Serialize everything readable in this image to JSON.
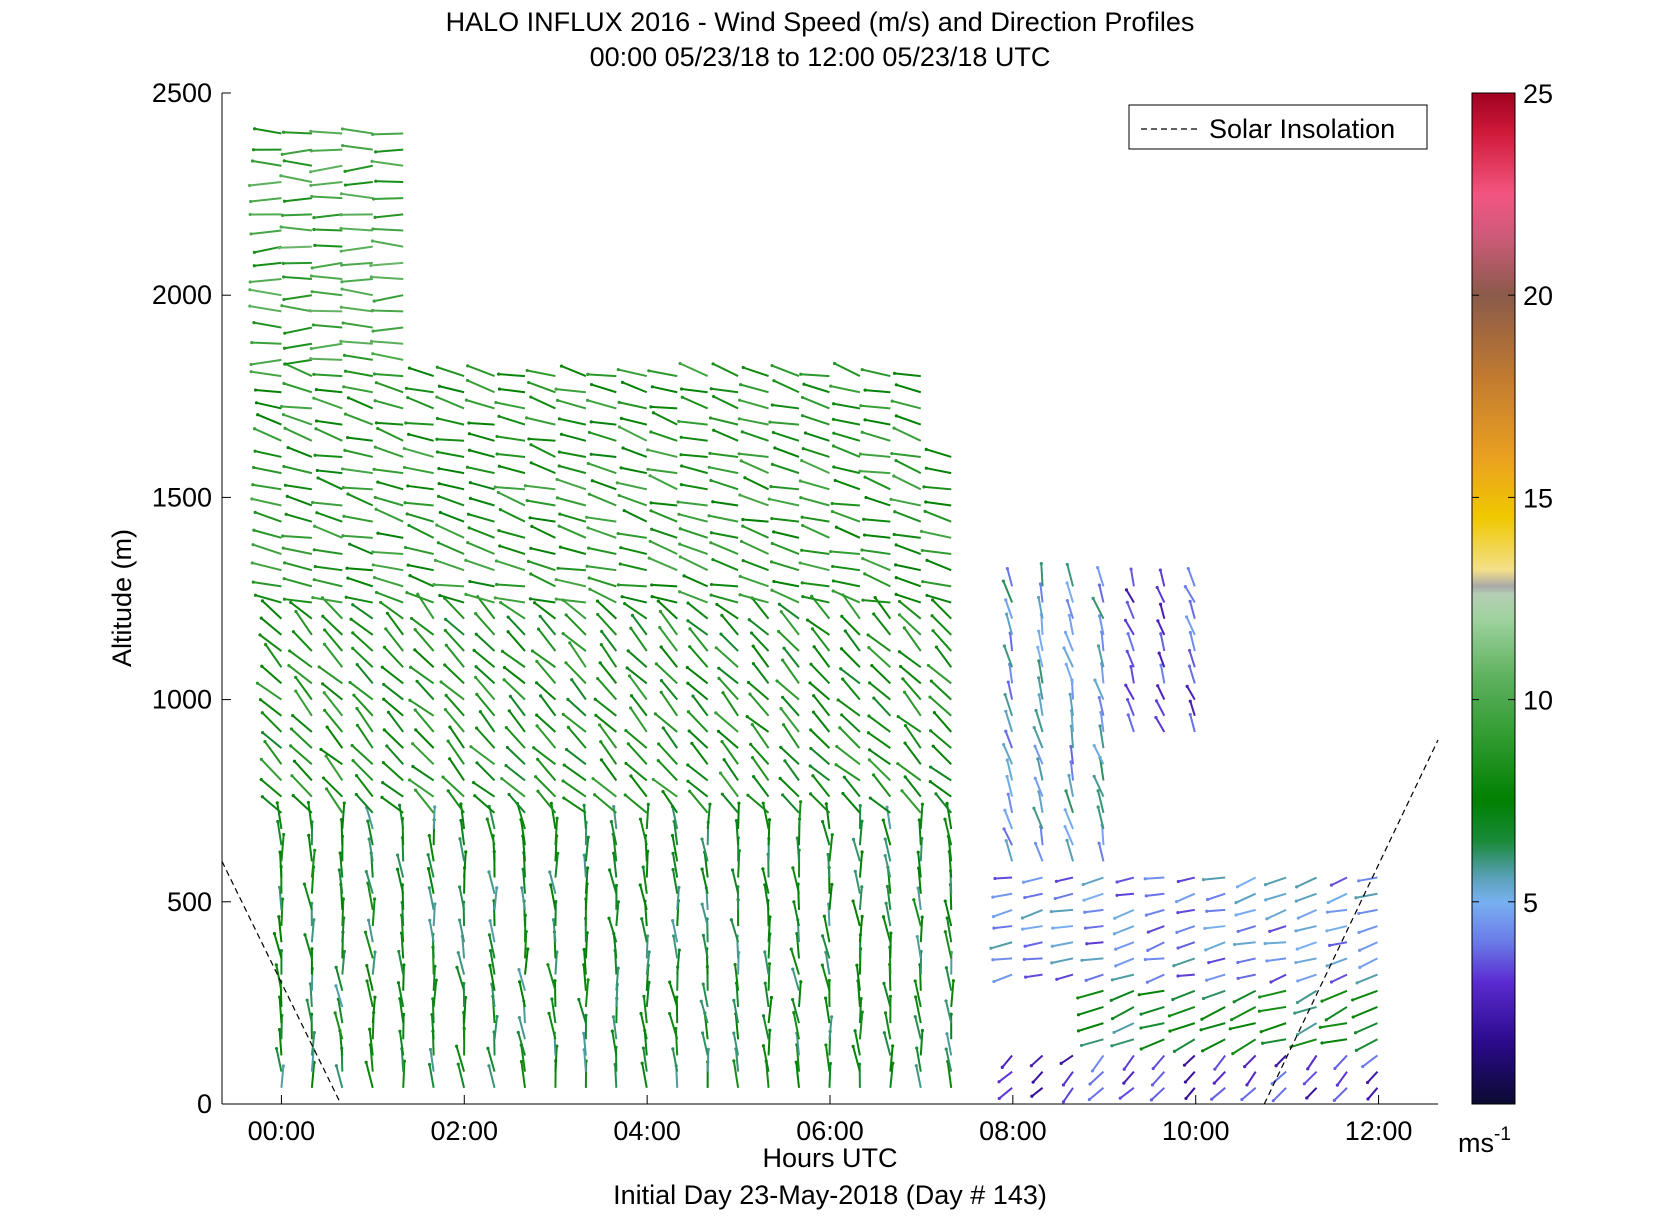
{
  "chart_data": {
    "type": "scatter",
    "title": "HALO INFLUX 2016 - Wind Speed (m/s) and Direction Profiles",
    "subtitle": "00:00 05/23/18 to 12:00 05/23/18  UTC",
    "xlabel": "Hours UTC",
    "ylabel": "Altitude (m)",
    "footer": "Initial Day 23-May-2018 (Day # 143)",
    "x_ticks": [
      "00:00",
      "02:00",
      "04:00",
      "06:00",
      "08:00",
      "10:00",
      "12:00"
    ],
    "x_tick_hours": [
      0,
      2,
      4,
      6,
      8,
      10,
      12
    ],
    "xlim_hours": [
      -0.65,
      12.65
    ],
    "y_ticks": [
      "0",
      "500",
      "1000",
      "1500",
      "2000",
      "2500"
    ],
    "y_tick_values": [
      0,
      500,
      1000,
      1500,
      2000,
      2500
    ],
    "ylim": [
      0,
      2500
    ],
    "grid": false,
    "legend": {
      "position": "top-right",
      "entries": [
        "Solar Insolation"
      ]
    },
    "colorbar": {
      "min": 0,
      "max": 25,
      "ticks": [
        "5",
        "10",
        "15",
        "20",
        "25"
      ],
      "tick_values": [
        5,
        10,
        15,
        20,
        25
      ],
      "unit_base": "ms",
      "unit_exp": "-1",
      "stops": [
        [
          0,
          "#0a0a30"
        ],
        [
          1.5,
          "#2a0a8a"
        ],
        [
          3,
          "#5a2ad0"
        ],
        [
          4,
          "#6a7ae8"
        ],
        [
          5,
          "#78b0f0"
        ],
        [
          5.6,
          "#5aa0b8"
        ],
        [
          6.5,
          "#1a8a3a"
        ],
        [
          7.5,
          "#008000"
        ],
        [
          9,
          "#2e9a2e"
        ],
        [
          10.5,
          "#5cb05c"
        ],
        [
          12,
          "#9fd29f"
        ],
        [
          12.6,
          "#b4ceb4"
        ],
        [
          12.8,
          "#a8a8a8"
        ],
        [
          13.2,
          "#f2e08a"
        ],
        [
          14.5,
          "#f0c800"
        ],
        [
          16,
          "#eaa020"
        ],
        [
          18,
          "#c07a30"
        ],
        [
          20,
          "#8a5a4a"
        ],
        [
          21.5,
          "#d05a7a"
        ],
        [
          22.5,
          "#f25580"
        ],
        [
          24,
          "#d01a3a"
        ],
        [
          25,
          "#a00020"
        ]
      ]
    },
    "solar_insolation": {
      "name": "Solar Insolation",
      "style": "dashed",
      "segments": [
        {
          "hours": [
            -0.65,
            0.65
          ],
          "altitude": [
            600,
            0
          ]
        },
        {
          "hours": [
            10.75,
            12.65
          ],
          "altitude": [
            0,
            900
          ]
        }
      ]
    },
    "wind_field": {
      "description_series": "wind barbs, speed in m/s, direction in degrees",
      "time_start_hours": 0.0,
      "time_step_hours": 0.333,
      "altitude_step_m": 40,
      "regimes": [
        {
          "t": [
            0.0,
            1.4
          ],
          "z": [
            1800,
            2420
          ],
          "speed": 9.5,
          "dir": 270
        },
        {
          "t": [
            0.0,
            7.5
          ],
          "z": [
            1200,
            1800
          ],
          "speed": 8.5,
          "dir": 285
        },
        {
          "t": [
            0.0,
            7.5
          ],
          "z": [
            700,
            1200
          ],
          "speed": 8.0,
          "dir": 315
        },
        {
          "t": [
            0.0,
            7.5
          ],
          "z": [
            40,
            700
          ],
          "speed": 7.0,
          "dir": 355
        },
        {
          "t": [
            7.8,
            9.0
          ],
          "z": [
            600,
            1300
          ],
          "speed": 5.0,
          "dir": 345
        },
        {
          "t": [
            9.0,
            10.0
          ],
          "z": [
            900,
            1300
          ],
          "speed": 3.5,
          "dir": 340
        },
        {
          "t": [
            7.8,
            12.0
          ],
          "z": [
            300,
            560
          ],
          "speed": 4.5,
          "dir": 255
        },
        {
          "t": [
            8.8,
            12.0
          ],
          "z": [
            80,
            300
          ],
          "speed": 7.0,
          "dir": 250
        },
        {
          "t": [
            7.8,
            12.0
          ],
          "z": [
            20,
            120
          ],
          "speed": 3.0,
          "dir": 225
        }
      ]
    }
  }
}
